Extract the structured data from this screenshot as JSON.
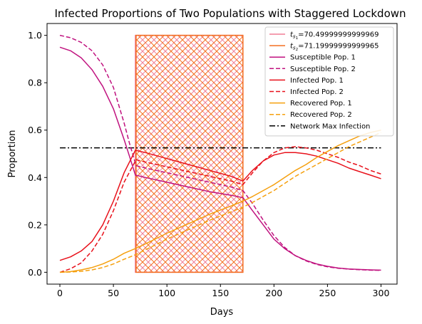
{
  "chart_data": {
    "type": "line",
    "title": "Infected Proportions of Two Populations with Staggered Lockdown",
    "xlabel": "Days",
    "ylabel": "Proportion",
    "xlim": [
      -12,
      315
    ],
    "ylim": [
      -0.05,
      1.05
    ],
    "xticks": [
      0,
      50,
      100,
      150,
      200,
      250,
      300
    ],
    "xtick_labels": [
      "0",
      "50",
      "100",
      "150",
      "200",
      "250",
      "300"
    ],
    "yticks": [
      0.0,
      0.2,
      0.4,
      0.6,
      0.8,
      1.0
    ],
    "ytick_labels": [
      "0.0",
      "0.2",
      "0.4",
      "0.6",
      "0.8",
      "1.0"
    ],
    "grid": false,
    "legend_position": "upper-right",
    "lockdown_regions": [
      {
        "x0": 70.49999999999969,
        "x1": 171,
        "y0": 0,
        "y1": 1,
        "color": "#f07f96",
        "hatch": "cross"
      },
      {
        "x0": 71.19999999999965,
        "x1": 171,
        "y0": 0,
        "y1": 1,
        "color": "#f36f21",
        "hatch": "cross"
      }
    ],
    "hlines": [
      {
        "name": "Network Max Infection",
        "y": 0.525,
        "x0": 0,
        "x1": 300,
        "color": "#000000",
        "style": "dashdot"
      }
    ],
    "series": [
      {
        "name": "Susceptible Pop. 1",
        "color": "#c0127f",
        "style": "solid",
        "x": [
          0,
          10,
          20,
          30,
          40,
          50,
          60,
          65,
          70.5,
          80,
          100,
          120,
          140,
          160,
          171,
          180,
          190,
          200,
          210,
          220,
          230,
          240,
          250,
          260,
          270,
          280,
          290,
          300
        ],
        "y": [
          0.95,
          0.935,
          0.905,
          0.855,
          0.785,
          0.69,
          0.56,
          0.49,
          0.41,
          0.4,
          0.38,
          0.36,
          0.34,
          0.325,
          0.315,
          0.26,
          0.2,
          0.14,
          0.1,
          0.07,
          0.05,
          0.035,
          0.025,
          0.018,
          0.014,
          0.012,
          0.01,
          0.009
        ]
      },
      {
        "name": "Susceptible Pop. 2",
        "color": "#c0127f",
        "style": "dashed",
        "x": [
          0,
          10,
          20,
          30,
          40,
          50,
          60,
          65,
          71.2,
          80,
          100,
          120,
          140,
          160,
          171,
          180,
          190,
          200,
          210,
          220,
          230,
          240,
          250,
          260,
          270,
          280,
          290,
          300
        ],
        "y": [
          1.0,
          0.99,
          0.97,
          0.935,
          0.875,
          0.78,
          0.63,
          0.545,
          0.45,
          0.44,
          0.42,
          0.4,
          0.38,
          0.36,
          0.345,
          0.29,
          0.22,
          0.155,
          0.105,
          0.07,
          0.048,
          0.033,
          0.023,
          0.017,
          0.013,
          0.011,
          0.009,
          0.008
        ]
      },
      {
        "name": "Infected Pop. 1",
        "color": "#e8101a",
        "style": "solid",
        "x": [
          0,
          10,
          20,
          30,
          40,
          50,
          60,
          70.5,
          80,
          100,
          120,
          140,
          160,
          171,
          180,
          190,
          200,
          210,
          220,
          230,
          240,
          250,
          260,
          270,
          280,
          290,
          300
        ],
        "y": [
          0.05,
          0.065,
          0.09,
          0.13,
          0.2,
          0.3,
          0.42,
          0.515,
          0.505,
          0.48,
          0.455,
          0.43,
          0.405,
          0.385,
          0.43,
          0.47,
          0.495,
          0.505,
          0.505,
          0.5,
          0.49,
          0.475,
          0.46,
          0.44,
          0.425,
          0.41,
          0.395
        ]
      },
      {
        "name": "Infected Pop. 2",
        "color": "#e8101a",
        "style": "dashed",
        "x": [
          0,
          10,
          20,
          30,
          40,
          50,
          60,
          71.2,
          80,
          100,
          120,
          140,
          160,
          171,
          180,
          190,
          200,
          210,
          220,
          230,
          240,
          250,
          260,
          270,
          280,
          290,
          300
        ],
        "y": [
          0.0,
          0.015,
          0.04,
          0.09,
          0.16,
          0.26,
          0.38,
          0.475,
          0.465,
          0.445,
          0.425,
          0.405,
          0.385,
          0.37,
          0.42,
          0.47,
          0.505,
          0.525,
          0.53,
          0.525,
          0.515,
          0.5,
          0.485,
          0.465,
          0.45,
          0.43,
          0.415
        ]
      },
      {
        "name": "Recovered Pop. 1",
        "color": "#f5a00e",
        "style": "solid",
        "x": [
          0,
          10,
          20,
          30,
          40,
          50,
          60,
          70.5,
          80,
          100,
          120,
          140,
          160,
          171,
          180,
          190,
          200,
          210,
          220,
          230,
          240,
          250,
          260,
          270,
          280,
          290,
          300
        ],
        "y": [
          0.0,
          0.003,
          0.01,
          0.02,
          0.035,
          0.055,
          0.08,
          0.1,
          0.12,
          0.165,
          0.205,
          0.245,
          0.28,
          0.3,
          0.32,
          0.345,
          0.37,
          0.4,
          0.43,
          0.455,
          0.485,
          0.51,
          0.535,
          0.555,
          0.575,
          0.59,
          0.6
        ]
      },
      {
        "name": "Recovered Pop. 2",
        "color": "#f5a00e",
        "style": "dashed",
        "x": [
          0,
          10,
          20,
          30,
          40,
          50,
          60,
          71.2,
          80,
          100,
          120,
          140,
          160,
          171,
          180,
          190,
          200,
          210,
          220,
          230,
          240,
          250,
          260,
          270,
          280,
          290,
          300
        ],
        "y": [
          0.0,
          0.001,
          0.004,
          0.01,
          0.02,
          0.035,
          0.055,
          0.075,
          0.095,
          0.14,
          0.18,
          0.22,
          0.255,
          0.275,
          0.295,
          0.32,
          0.345,
          0.375,
          0.405,
          0.43,
          0.455,
          0.48,
          0.505,
          0.53,
          0.55,
          0.57,
          0.59
        ]
      }
    ],
    "legend": [
      {
        "label_prefix": "t",
        "label_sub": "s",
        "label_subsub": "1",
        "label_value": "=70.49999999999969",
        "color": "#f07f96",
        "style": "solid"
      },
      {
        "label_prefix": "t",
        "label_sub": "s",
        "label_subsub": "2",
        "label_value": "=71.19999999999965",
        "color": "#f36f21",
        "style": "solid"
      },
      {
        "label": "Susceptible Pop. 1",
        "color": "#c0127f",
        "style": "solid"
      },
      {
        "label": "Susceptible Pop. 2",
        "color": "#c0127f",
        "style": "dashed"
      },
      {
        "label": "Infected Pop. 1",
        "color": "#e8101a",
        "style": "solid"
      },
      {
        "label": "Infected Pop. 2",
        "color": "#e8101a",
        "style": "dashed"
      },
      {
        "label": "Recovered Pop. 1",
        "color": "#f5a00e",
        "style": "solid"
      },
      {
        "label": "Recovered Pop. 2",
        "color": "#f5a00e",
        "style": "dashed"
      },
      {
        "label": "Network Max Infection",
        "color": "#000000",
        "style": "dashdot"
      }
    ]
  }
}
